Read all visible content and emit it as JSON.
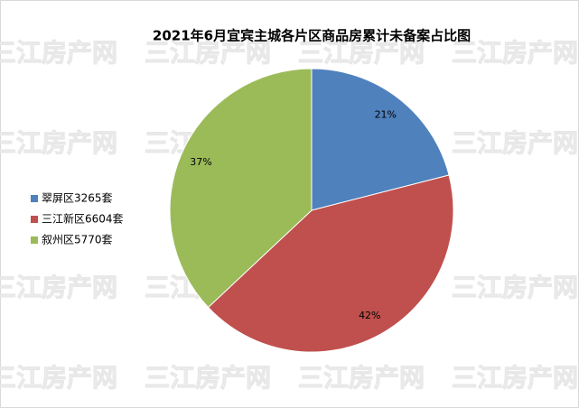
{
  "chart_data": {
    "type": "pie",
    "title": "2021年6月宜宾主城各片区商品房累计未备案占比图",
    "categories": [
      "翠屏区3265套",
      "三江新区6604套",
      "叙州区5770套"
    ],
    "values": [
      21,
      42,
      37
    ],
    "value_labels": [
      "21%",
      "42%",
      "37%"
    ],
    "colors": [
      "#4f81bd",
      "#c0504d",
      "#9bbb59"
    ],
    "legend": "left",
    "watermark": "三江房产网"
  }
}
